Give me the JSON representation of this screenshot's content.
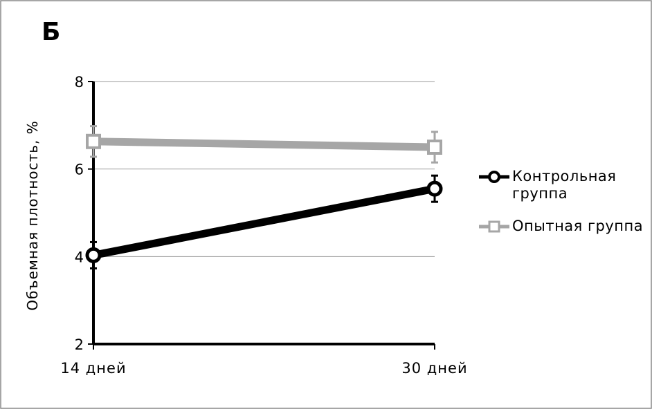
{
  "chart_data": {
    "type": "line",
    "title": "Б",
    "y_label": "Объемная плотность, %",
    "categories": [
      "14 дней",
      "30 дней"
    ],
    "series": [
      {
        "name": "Контрольная группа",
        "color": "#000000",
        "marker": "circle",
        "values": [
          4.03,
          5.55
        ],
        "errors": [
          0.3,
          0.3
        ]
      },
      {
        "name": "Опытная группа",
        "color": "#a6a6a6",
        "marker": "square",
        "values": [
          6.63,
          6.5
        ],
        "errors": [
          0.35,
          0.35
        ]
      }
    ],
    "ylim": [
      2,
      8
    ],
    "yticks": [
      2,
      4,
      6,
      8
    ],
    "grid": true,
    "legend": "right"
  }
}
